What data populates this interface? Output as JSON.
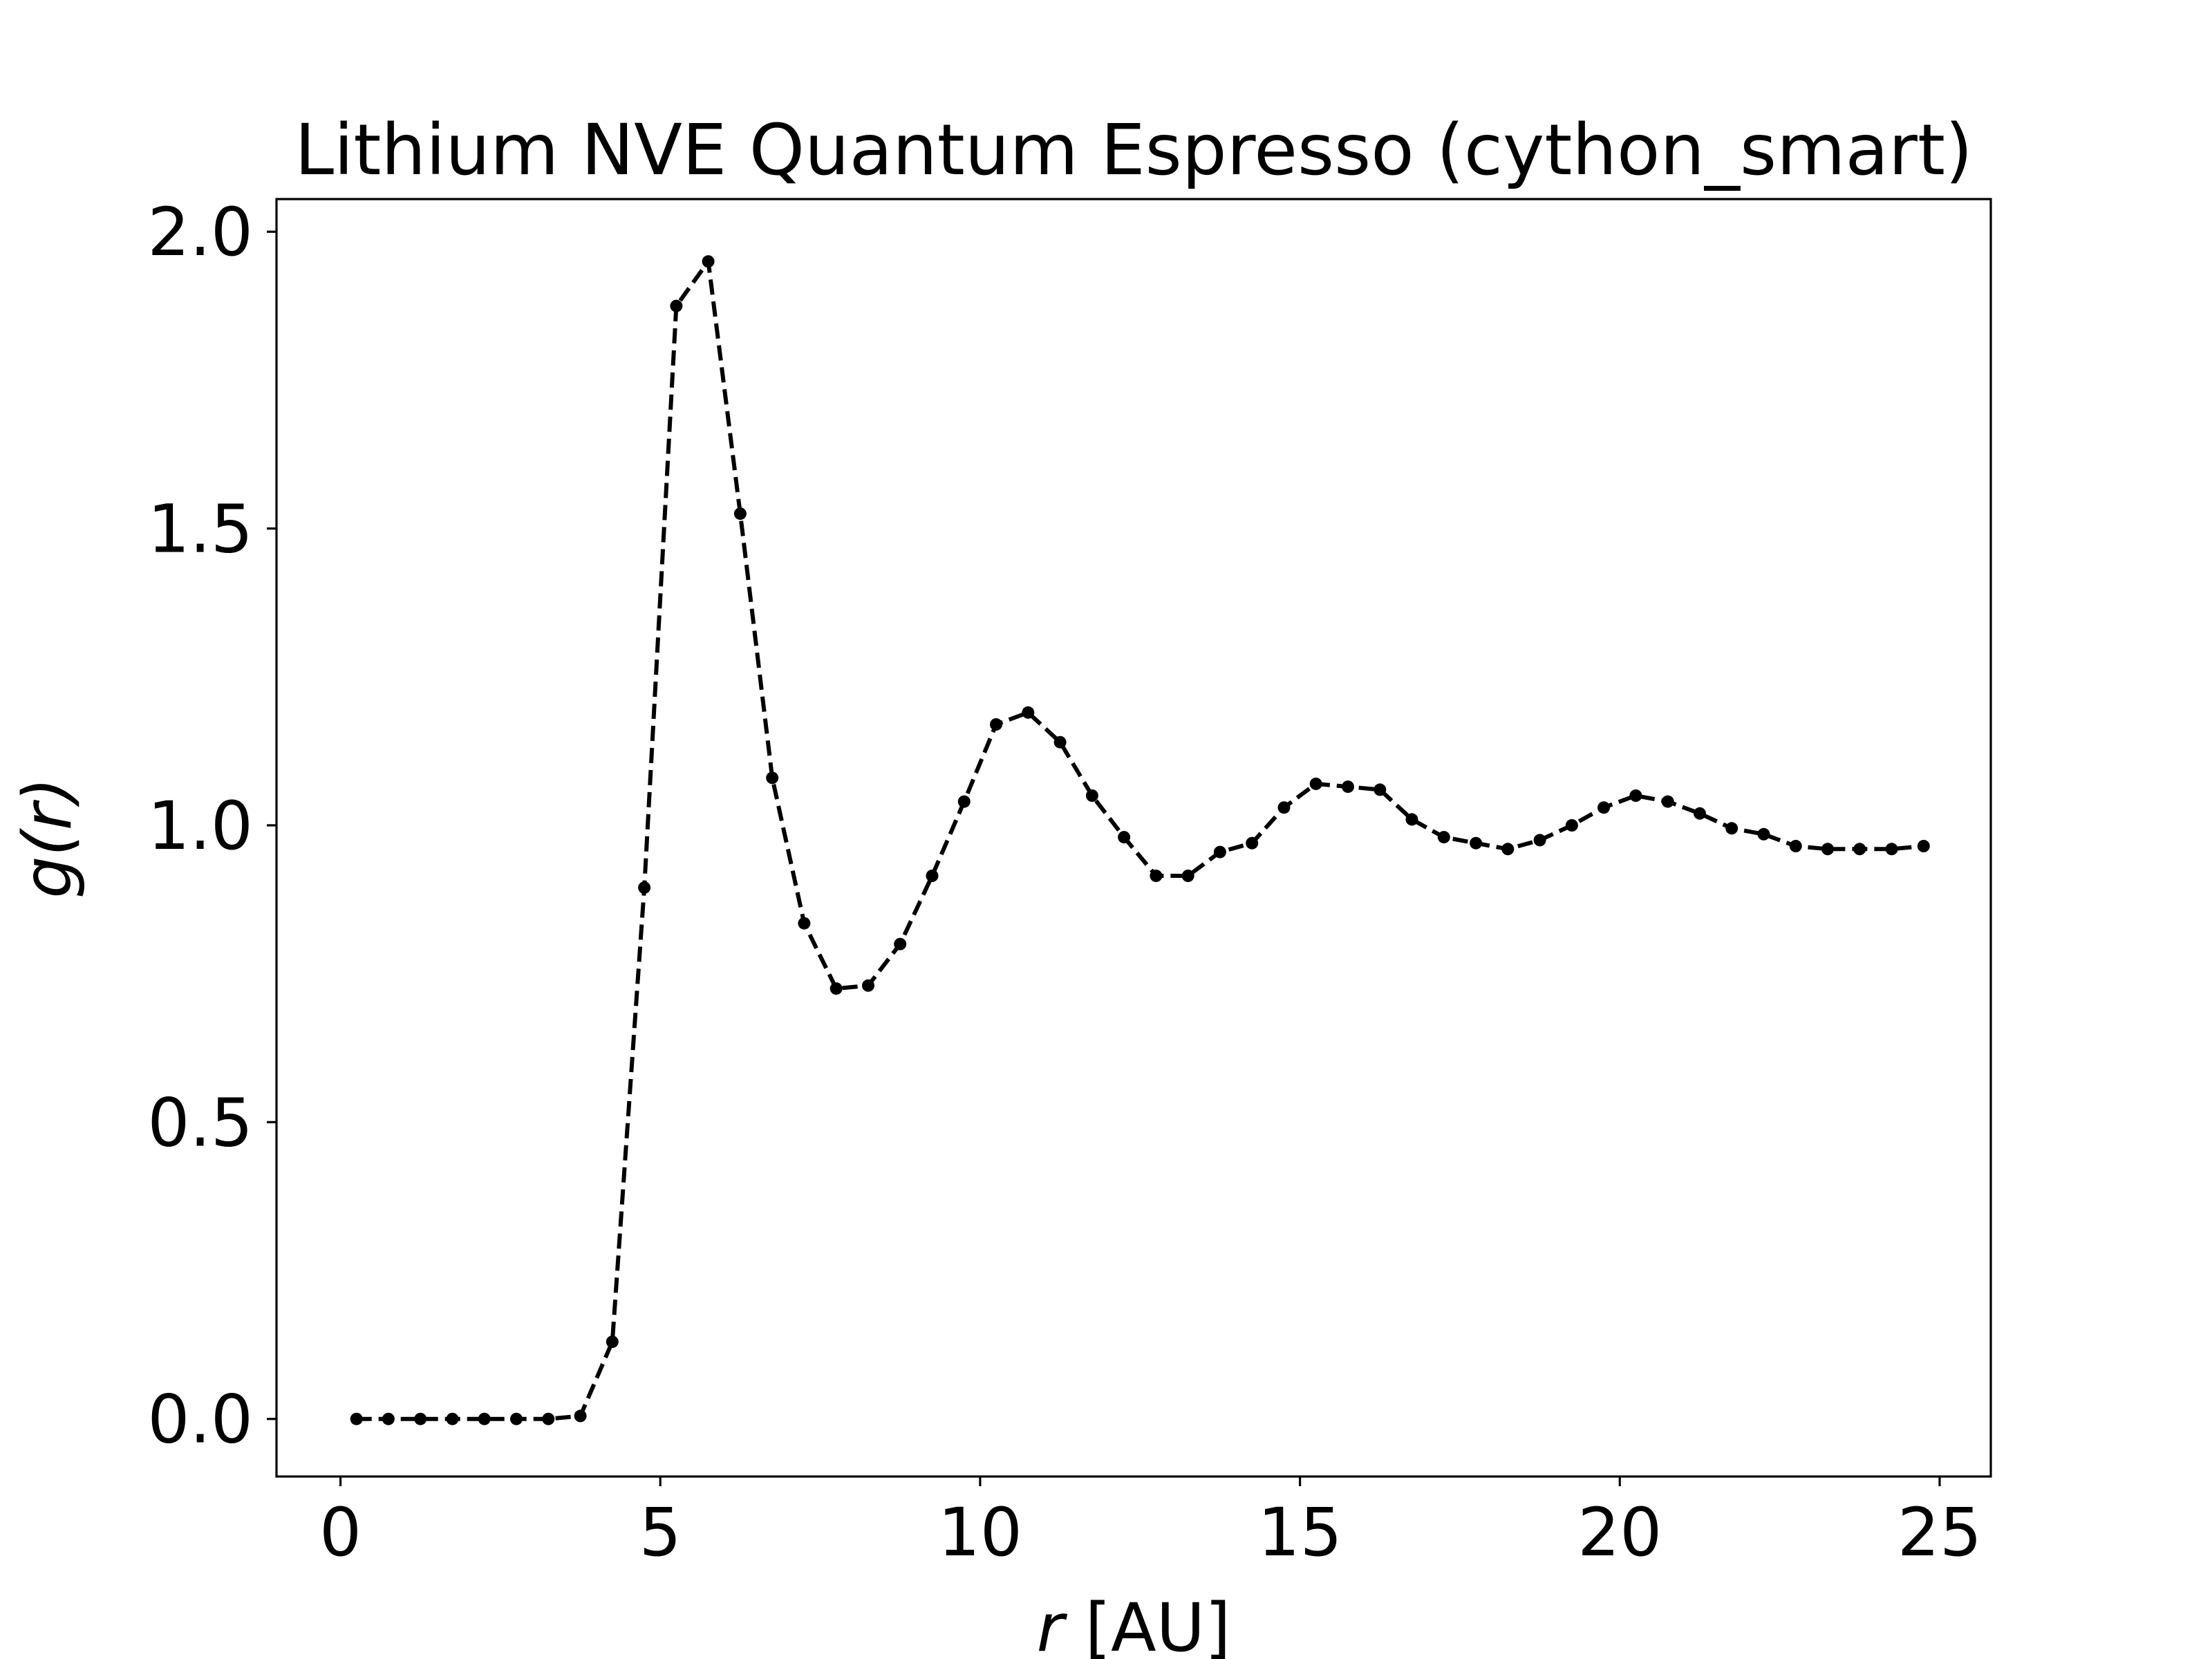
{
  "chart_data": {
    "type": "line",
    "title": "Lithium NVE Quantum Espresso (cython_smart)",
    "xlabel": {
      "var": "r",
      "unit": " [AU]"
    },
    "ylabel": {
      "func": "g(",
      "var": "r",
      "close": ")"
    },
    "xlim": [
      -1,
      25.8
    ],
    "ylim": [
      -0.097,
      2.055
    ],
    "xticks": [
      "0",
      "5",
      "10",
      "15",
      "20",
      "25"
    ],
    "yticks": [
      "0.0",
      "0.5",
      "1.0",
      "1.5",
      "2.0"
    ],
    "grid": false,
    "legend": "none",
    "series": [
      {
        "line_style": "dashed",
        "marker": "dot",
        "color": "#000000",
        "x": [
          0.25,
          0.75,
          1.25,
          1.75,
          2.25,
          2.75,
          3.25,
          3.75,
          4.25,
          4.75,
          5.25,
          5.75,
          6.25,
          6.75,
          7.25,
          7.75,
          8.25,
          8.75,
          9.25,
          9.75,
          10.25,
          10.75,
          11.25,
          11.75,
          12.25,
          12.75,
          13.25,
          13.75,
          14.25,
          14.75,
          15.25,
          15.75,
          16.25,
          16.75,
          17.25,
          17.75,
          18.25,
          18.75,
          19.25,
          19.75,
          20.25,
          20.75,
          21.25,
          21.75,
          22.25,
          22.75,
          23.25,
          23.75,
          24.25,
          24.75
        ],
        "y": [
          0.0,
          0.0,
          0.0,
          0.0,
          0.0,
          0.0,
          0.0,
          0.005,
          0.13,
          0.895,
          1.875,
          1.95,
          1.525,
          1.08,
          0.835,
          0.725,
          0.73,
          0.8,
          0.915,
          1.04,
          1.17,
          1.19,
          1.14,
          1.05,
          0.98,
          0.915,
          0.915,
          0.955,
          0.97,
          1.03,
          1.07,
          1.065,
          1.06,
          1.01,
          0.98,
          0.97,
          0.96,
          0.975,
          1.0,
          1.03,
          1.05,
          1.04,
          1.02,
          0.995,
          0.985,
          0.965,
          0.96,
          0.96,
          0.96,
          0.965
        ]
      }
    ]
  }
}
